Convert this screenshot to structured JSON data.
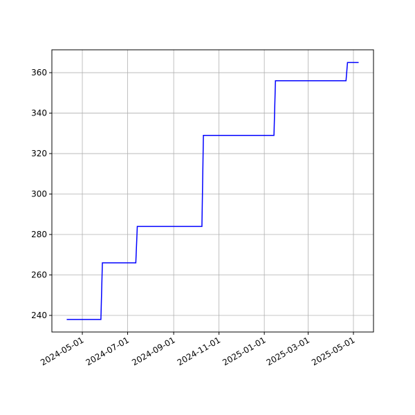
{
  "chart_data": {
    "type": "line",
    "x": [
      "2024-04-10",
      "2024-05-26",
      "2024-05-28",
      "2024-07-12",
      "2024-07-14",
      "2024-10-09",
      "2024-10-11",
      "2025-01-14",
      "2025-01-16",
      "2025-04-21",
      "2025-04-23",
      "2025-05-08"
    ],
    "series": [
      {
        "color": "#0000ff",
        "values": [
          238,
          238,
          266,
          266,
          284,
          284,
          329,
          329,
          356,
          356,
          365,
          365
        ]
      }
    ],
    "xlim": [
      "2024-03-21",
      "2025-05-28"
    ],
    "xticks": [
      "2024-05-01",
      "2024-07-01",
      "2024-09-01",
      "2024-11-01",
      "2025-01-01",
      "2025-03-01",
      "2025-05-01"
    ],
    "ylim": [
      231.8,
      371.3
    ],
    "yticks": [
      240,
      260,
      280,
      300,
      320,
      340,
      360
    ],
    "grid": true
  }
}
